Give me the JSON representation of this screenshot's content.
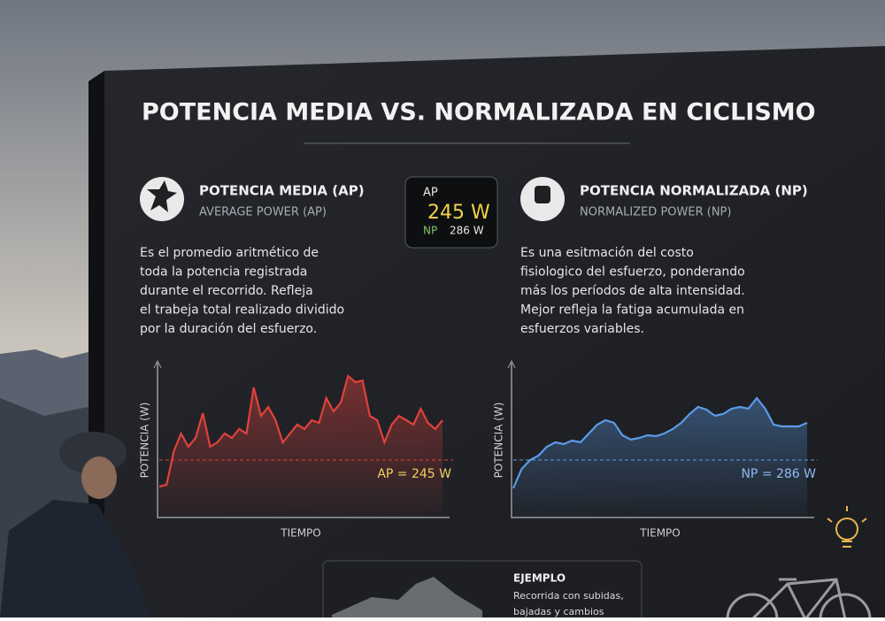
{
  "title": "POTENCIA MEDIA VS. NORMALIZADA EN CICLISMO",
  "left": {
    "heading": "POTENCIA MEDIA (AP)",
    "subheading": "AVERAGE POWER (AP)",
    "text": [
      "Es el promedio aritmético de",
      "toda la potencia registrada",
      "durante el recorrido. Refleja",
      "el trabeja total realizado dividido",
      "por la duración del esfuerzo."
    ]
  },
  "device": {
    "ap_label": "AP",
    "ap_value": "245 W",
    "np_label": "NP",
    "np_value": "286 W"
  },
  "right": {
    "heading": "POTENCIA NORMALIZADA (NP)",
    "subheading": "NORMALIZED POWER (NP)",
    "text": [
      "Es una esitmación del costo",
      "fisiologico del esfuerzo, ponderando",
      "más los períodos de alta intensidad.",
      "Mejor refleja la fatiga acumulada en",
      "esfuerzos variables."
    ]
  },
  "charts": [
    {
      "type": "line",
      "y_label": "POTENCIA (W)",
      "x_label": "TIEMPO",
      "color": "#e0413c",
      "ylim": [
        0,
        660
      ],
      "reference": 245,
      "reference_label": "AP = 245 W",
      "values": [
        132,
        139,
        283,
        358,
        302,
        339,
        445,
        302,
        320,
        358,
        339,
        377,
        358,
        554,
        433,
        471,
        415,
        320,
        358,
        396,
        377,
        415,
        403,
        509,
        452,
        490,
        603,
        577,
        584,
        433,
        415,
        320,
        396,
        433,
        415,
        396,
        464,
        403,
        377,
        415
      ]
    },
    {
      "type": "line",
      "y_label": "POTENCIA (W)",
      "x_label": "TIEMPO",
      "color": "#5b9be8",
      "ylim": [
        0,
        770
      ],
      "reference": 286,
      "reference_label": "NP = 286 W",
      "values": [
        145,
        242,
        286,
        308,
        352,
        374,
        365,
        383,
        374,
        418,
        462,
        484,
        471,
        409,
        387,
        396,
        409,
        405,
        418,
        440,
        471,
        515,
        550,
        537,
        506,
        515,
        541,
        550,
        541,
        594,
        541,
        462,
        453,
        453,
        453,
        471
      ]
    }
  ],
  "example": {
    "heading": "EJEMPLO",
    "text": [
      "Recorrida con subidas,",
      "bajadas y cambios"
    ]
  }
}
